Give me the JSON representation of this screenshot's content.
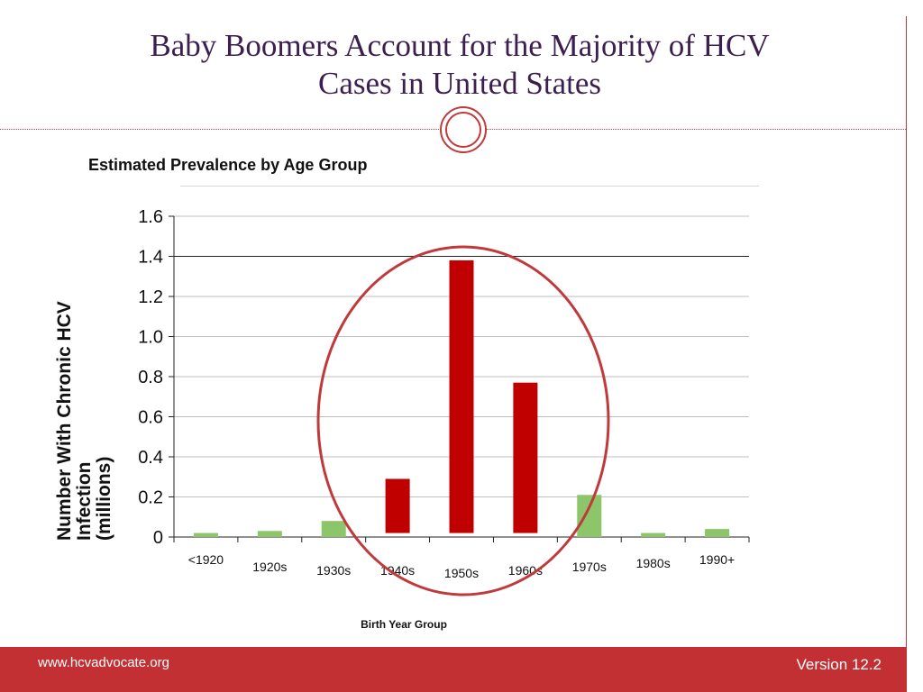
{
  "slide": {
    "title_line1": "Baby Boomers Account for the Majority of HCV",
    "title_line2": "Cases in United States"
  },
  "footer": {
    "url": "www.hcvadvocate.org",
    "version": "Version 12.2"
  },
  "colors": {
    "highlight_bar": "#c00000",
    "normal_bar": "#8cc56a",
    "circle": "#c0393b",
    "footer_bg": "#c23033"
  },
  "chart_data": {
    "type": "bar",
    "title": "Estimated Prevalence by Age Group",
    "ylabel_lines": [
      "Number With Chronic HCV",
      "Infection",
      "(millions)"
    ],
    "xlabel": "Birth Year Group",
    "categories": [
      "<1920",
      "1920s",
      "1930s",
      "1940s",
      "1950s",
      "1960s",
      "1970s",
      "1980s",
      "1990+"
    ],
    "values": [
      0.02,
      0.03,
      0.08,
      0.29,
      1.38,
      0.77,
      0.21,
      0.02,
      0.04
    ],
    "bar_base": [
      0,
      0,
      0,
      0.02,
      0.02,
      0.02,
      0,
      0,
      0
    ],
    "highlighted": [
      false,
      false,
      false,
      true,
      true,
      true,
      false,
      false,
      false
    ],
    "ylim": [
      0,
      1.6
    ],
    "yticks": [
      "0",
      "0.2",
      "0.4",
      "0.6",
      "0.8",
      "1.0",
      "1.2",
      "1.4",
      "1.6"
    ],
    "grid": true,
    "annotation": "circle around 1940s, 1950s and 1960s bars"
  }
}
